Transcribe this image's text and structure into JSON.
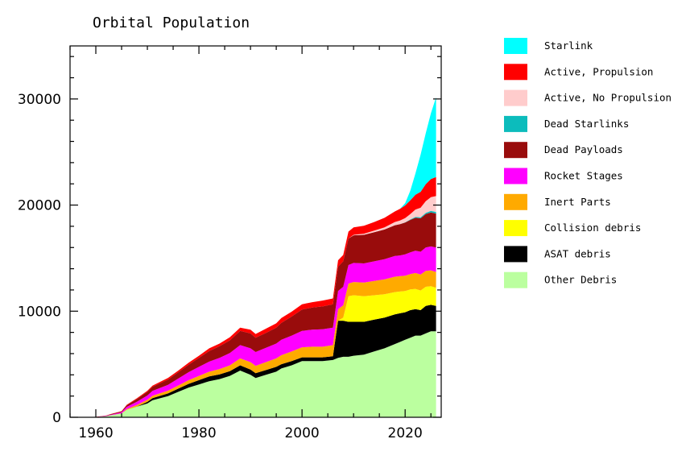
{
  "chart_data": {
    "type": "area",
    "stacked": true,
    "title": "Orbital Population",
    "xlabel": "",
    "ylabel": "",
    "xlim": [
      1955,
      2027
    ],
    "ylim": [
      0,
      35000
    ],
    "x_ticks": [
      1960,
      1980,
      2000,
      2020
    ],
    "y_ticks": [
      0,
      10000,
      20000,
      30000
    ],
    "legend_position": "right",
    "x": [
      1957,
      1960,
      1962,
      1963,
      1965,
      1966,
      1968,
      1970,
      1971,
      1974,
      1976,
      1978,
      1980,
      1982,
      1984,
      1986,
      1988,
      1990,
      1991,
      1993,
      1995,
      1996,
      1998,
      2000,
      2002,
      2004,
      2006,
      2007,
      2008,
      2009,
      2010,
      2012,
      2014,
      2016,
      2018,
      2019,
      2020,
      2021,
      2022,
      2023,
      2024,
      2025,
      2026
    ],
    "series": [
      {
        "name": "Other Debris",
        "color": "#bbff9f",
        "values": [
          0,
          20,
          100,
          200,
          350,
          700,
          1000,
          1300,
          1600,
          2000,
          2400,
          2800,
          3100,
          3400,
          3600,
          3900,
          4400,
          4000,
          3700,
          4000,
          4300,
          4600,
          4900,
          5300,
          5300,
          5300,
          5400,
          5600,
          5700,
          5700,
          5800,
          5900,
          6200,
          6500,
          6900,
          7100,
          7300,
          7500,
          7700,
          7700,
          7900,
          8100,
          8100
        ]
      },
      {
        "name": "ASAT debris",
        "color": "#000000",
        "values": [
          0,
          0,
          0,
          0,
          0,
          0,
          20,
          150,
          200,
          250,
          300,
          350,
          400,
          450,
          450,
          450,
          500,
          500,
          450,
          450,
          450,
          400,
          400,
          350,
          350,
          350,
          350,
          3500,
          3400,
          3300,
          3200,
          3100,
          3000,
          2900,
          2800,
          2700,
          2600,
          2600,
          2500,
          2400,
          2600,
          2500,
          2400
        ]
      },
      {
        "name": "Collision debris",
        "color": "#ffff00",
        "values": [
          0,
          0,
          0,
          0,
          0,
          0,
          0,
          0,
          0,
          0,
          0,
          0,
          0,
          0,
          0,
          0,
          0,
          0,
          0,
          0,
          0,
          0,
          0,
          0,
          0,
          0,
          0,
          0,
          300,
          2400,
          2500,
          2400,
          2300,
          2200,
          2100,
          2050,
          2000,
          1950,
          1900,
          1850,
          1800,
          1750,
          1700
        ]
      },
      {
        "name": "Inert Parts",
        "color": "#ffaa00",
        "values": [
          0,
          0,
          0,
          0,
          20,
          80,
          150,
          200,
          230,
          260,
          300,
          350,
          400,
          450,
          500,
          550,
          650,
          700,
          700,
          750,
          800,
          850,
          900,
          950,
          1000,
          1000,
          1050,
          1100,
          1150,
          1200,
          1250,
          1300,
          1350,
          1400,
          1450,
          1450,
          1450,
          1450,
          1500,
          1500,
          1500,
          1500,
          1500
        ]
      },
      {
        "name": "Rocket Stages",
        "color": "#ff00ff",
        "values": [
          0,
          10,
          30,
          50,
          100,
          200,
          300,
          400,
          450,
          550,
          650,
          750,
          850,
          950,
          1050,
          1150,
          1250,
          1300,
          1300,
          1350,
          1400,
          1450,
          1500,
          1550,
          1600,
          1650,
          1650,
          1700,
          1750,
          1750,
          1800,
          1800,
          1850,
          1900,
          1950,
          1950,
          2000,
          2050,
          2100,
          2150,
          2200,
          2250,
          2300
        ]
      },
      {
        "name": "Dead Payloads",
        "color": "#990c0c",
        "values": [
          0,
          10,
          30,
          50,
          80,
          150,
          250,
          350,
          400,
          500,
          600,
          700,
          850,
          1000,
          1100,
          1200,
          1350,
          1400,
          1350,
          1400,
          1500,
          1600,
          1800,
          2000,
          2100,
          2150,
          2200,
          2300,
          2400,
          2500,
          2600,
          2700,
          2750,
          2800,
          2900,
          2950,
          3000,
          3050,
          3100,
          3150,
          3150,
          3200,
          3200
        ]
      },
      {
        "name": "Dead Starlinks",
        "color": "#0cbcbc",
        "values": [
          0,
          0,
          0,
          0,
          0,
          0,
          0,
          0,
          0,
          0,
          0,
          0,
          0,
          0,
          0,
          0,
          0,
          0,
          0,
          0,
          0,
          0,
          0,
          0,
          0,
          0,
          0,
          0,
          0,
          0,
          0,
          0,
          0,
          0,
          0,
          0,
          20,
          50,
          80,
          100,
          120,
          150,
          150
        ]
      },
      {
        "name": "Active, No Propulsion",
        "color": "#ffcccc",
        "values": [
          0,
          0,
          0,
          0,
          0,
          0,
          0,
          0,
          0,
          0,
          0,
          0,
          0,
          0,
          0,
          0,
          0,
          0,
          0,
          0,
          0,
          0,
          0,
          0,
          0,
          0,
          0,
          0,
          0,
          0,
          50,
          100,
          150,
          200,
          300,
          350,
          400,
          500,
          700,
          900,
          1100,
          1300,
          1500
        ]
      },
      {
        "name": "Active, Propulsion",
        "color": "#ff0000",
        "values": [
          0,
          0,
          10,
          20,
          30,
          50,
          80,
          100,
          100,
          150,
          150,
          200,
          200,
          250,
          250,
          300,
          300,
          350,
          350,
          400,
          400,
          450,
          450,
          500,
          500,
          550,
          550,
          600,
          600,
          650,
          700,
          750,
          800,
          900,
          1000,
          1100,
          1200,
          1300,
          1400,
          1500,
          1600,
          1700,
          1800
        ]
      },
      {
        "name": "Starlink",
        "color": "#00ffff",
        "values": [
          0,
          0,
          0,
          0,
          0,
          0,
          0,
          0,
          0,
          0,
          0,
          0,
          0,
          0,
          0,
          0,
          0,
          0,
          0,
          0,
          0,
          0,
          0,
          0,
          0,
          0,
          0,
          0,
          0,
          0,
          0,
          0,
          0,
          0,
          0,
          0,
          200,
          900,
          2000,
          3500,
          4800,
          6200,
          7500
        ]
      }
    ],
    "legend_order": [
      "Starlink",
      "Active, Propulsion",
      "Active, No Propulsion",
      "Dead Starlinks",
      "Dead Payloads",
      "Rocket Stages",
      "Inert Parts",
      "Collision debris",
      "ASAT debris",
      "Other Debris"
    ]
  }
}
